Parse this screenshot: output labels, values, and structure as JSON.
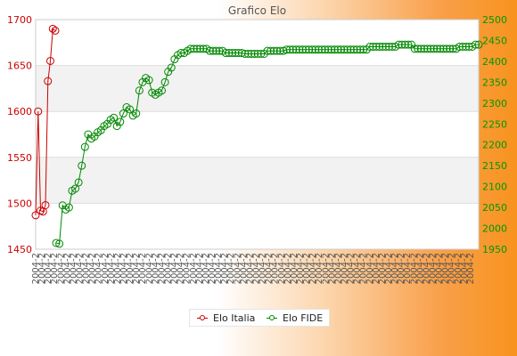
{
  "chart_data": {
    "type": "line",
    "title": "Grafico Elo",
    "xlabel": "",
    "ylabel_left": "",
    "ylabel_right": "",
    "ylim_left": [
      1450,
      1700
    ],
    "ylim_right": [
      1950,
      2500
    ],
    "yticks_left": [
      1450,
      1500,
      1550,
      1600,
      1650,
      1700
    ],
    "yticks_right": [
      1950,
      2000,
      2050,
      2100,
      2150,
      2200,
      2250,
      2300,
      2350,
      2400,
      2450,
      2500
    ],
    "colors": {
      "left": "#cc0000",
      "right": "#008800",
      "band": "#f2f2f2",
      "gridline": "#dddddd"
    },
    "grid": true,
    "legend_position": "bottom-center",
    "x_tick_label_sample": "2004-2",
    "series": [
      {
        "name": "Elo Italia",
        "axis": "left",
        "color": "#cc0000",
        "values": [
          1487,
          1600,
          1492,
          1491,
          1498,
          1633,
          1655,
          1690,
          1688
        ]
      },
      {
        "name": "Elo FIDE",
        "axis": "right",
        "color": "#008800",
        "values": [
          1965,
          1963,
          2055,
          2045,
          2050,
          2090,
          2095,
          2110,
          2150,
          2195,
          2225,
          2215,
          2220,
          2230,
          2235,
          2245,
          2250,
          2260,
          2265,
          2245,
          2255,
          2275,
          2290,
          2285,
          2270,
          2275,
          2330,
          2350,
          2360,
          2355,
          2325,
          2320,
          2325,
          2330,
          2350,
          2375,
          2385,
          2405,
          2415,
          2420,
          2420,
          2425,
          2430,
          2430,
          2430,
          2430,
          2430,
          2430,
          2425,
          2425,
          2425,
          2425,
          2425,
          2420,
          2420,
          2420,
          2420,
          2420,
          2420,
          2418,
          2418,
          2418,
          2418,
          2418,
          2418,
          2418,
          2425,
          2425,
          2425,
          2425,
          2425,
          2425,
          2428,
          2428,
          2428,
          2428,
          2428,
          2428,
          2428,
          2428,
          2428,
          2428,
          2428,
          2428,
          2428,
          2428,
          2428,
          2428,
          2428,
          2428,
          2428,
          2428,
          2428,
          2428,
          2428,
          2428,
          2428,
          2428,
          2435,
          2435,
          2435,
          2435,
          2435,
          2435,
          2435,
          2435,
          2435,
          2440,
          2440,
          2440,
          2440,
          2440,
          2430,
          2430,
          2430,
          2430,
          2430,
          2430,
          2430,
          2430,
          2430,
          2430,
          2430,
          2430,
          2430,
          2430,
          2435,
          2435,
          2435,
          2435,
          2435,
          2440,
          2440
        ]
      }
    ]
  }
}
